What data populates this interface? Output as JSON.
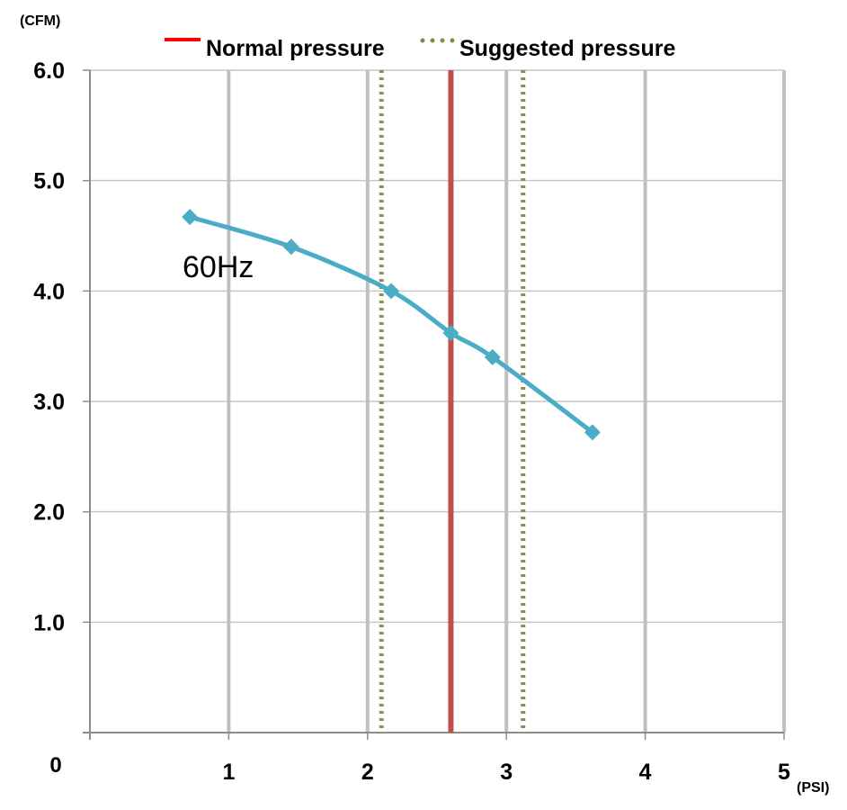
{
  "chart_data": {
    "type": "line",
    "title": "",
    "y_unit": "(CFM)",
    "x_unit": "(PSI)",
    "origin_label": "0",
    "xlim": [
      0,
      5
    ],
    "ylim": [
      0,
      6
    ],
    "x_ticks": [
      1,
      2,
      3,
      4,
      5
    ],
    "x_tick_labels": [
      "1",
      "2",
      "3",
      "4",
      "5"
    ],
    "y_ticks": [
      1,
      2,
      3,
      4,
      5,
      6
    ],
    "y_tick_labels": [
      "1.0",
      "2.0",
      "3.0",
      "4.0",
      "5.0",
      "6.0"
    ],
    "grid": true,
    "legend_position": "top",
    "series": [
      {
        "name": "",
        "label": "60Hz",
        "color": "#4bacc6",
        "marker": "diamond",
        "x": [
          0.72,
          1.45,
          2.17,
          2.6,
          2.9,
          3.62
        ],
        "y": [
          4.67,
          4.4,
          4.0,
          3.62,
          3.4,
          2.72
        ]
      }
    ],
    "reference_lines": [
      {
        "name": "Normal pressure",
        "x": 2.6,
        "style": "solid",
        "color": "#c0504d",
        "legend_color": "#ff0000"
      },
      {
        "name": "Suggested pressure",
        "x": 2.1,
        "style": "dotted",
        "color": "#948a54",
        "legend_color": "#77933c"
      },
      {
        "name": "Suggested pressure",
        "x": 3.12,
        "style": "dotted",
        "color": "#948a54",
        "legend_color": "#77933c"
      }
    ],
    "legend": [
      {
        "label": "Normal pressure",
        "style": "solid",
        "color": "#ff0000"
      },
      {
        "label": "Suggested pressure",
        "style": "dotted",
        "color": "#77933c"
      }
    ]
  }
}
